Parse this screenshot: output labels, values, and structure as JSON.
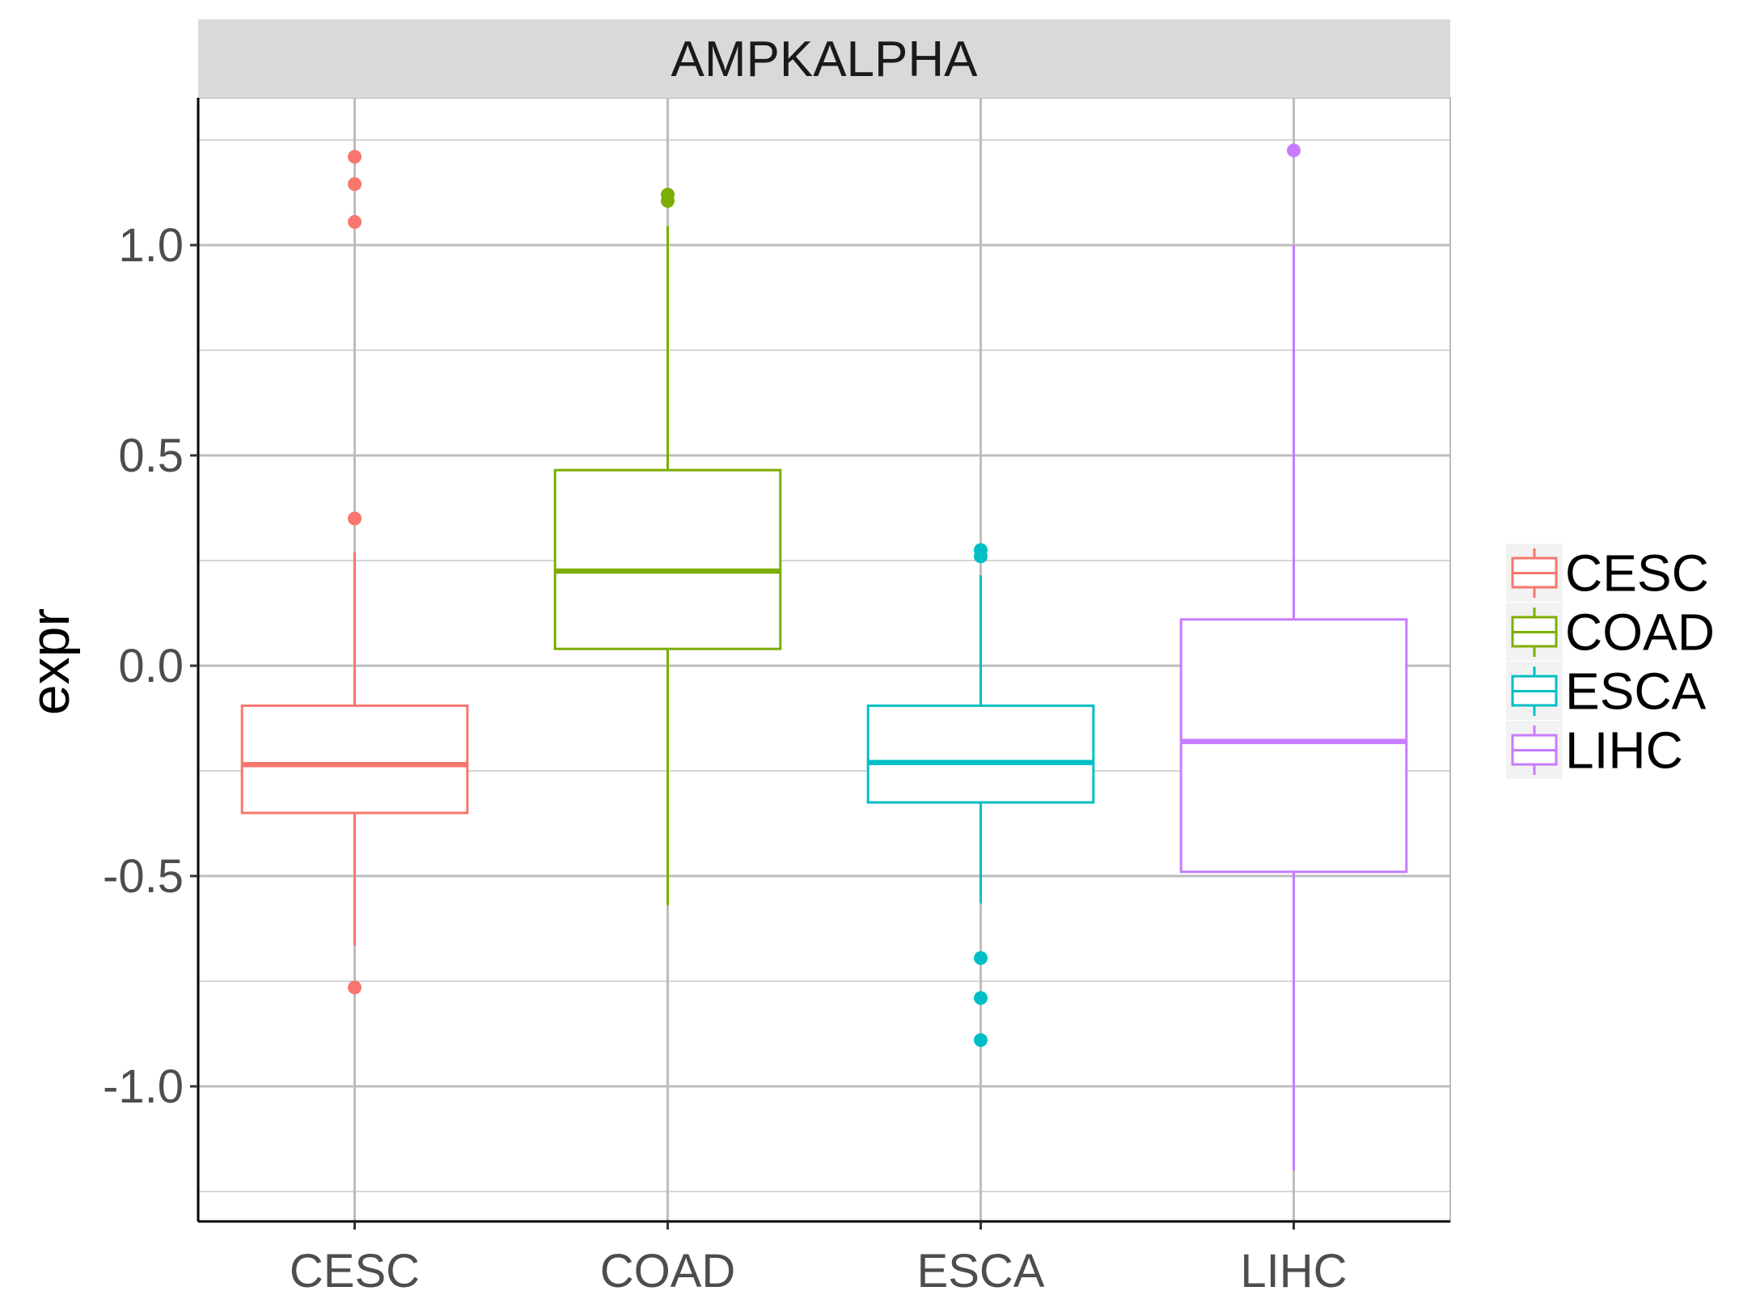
{
  "chart_data": {
    "type": "boxplot",
    "facet_title": "AMPKALPHA",
    "xlabel": "",
    "ylabel": "expr",
    "ylim": [
      -1.32,
      1.35
    ],
    "yticks": [
      1.0,
      0.5,
      0.0,
      -0.5,
      -1.0
    ],
    "ytick_labels": [
      "1.0",
      "0.5",
      "0.0",
      "-0.5",
      "-1.0"
    ],
    "minor_y": [
      1.25,
      0.75,
      0.25,
      -0.25,
      -0.75,
      -1.25
    ],
    "categories": [
      "CESC",
      "COAD",
      "ESCA",
      "LIHC"
    ],
    "series": [
      {
        "name": "CESC",
        "color": "#F8766D",
        "q1": -0.35,
        "median": -0.235,
        "q3": -0.095,
        "whisker_low": -0.665,
        "whisker_high": 0.27,
        "outliers": [
          1.21,
          1.145,
          1.055,
          0.35,
          -0.765
        ]
      },
      {
        "name": "COAD",
        "color": "#7CAE00",
        "q1": 0.04,
        "median": 0.225,
        "q3": 0.465,
        "whisker_low": -0.57,
        "whisker_high": 1.045,
        "outliers": [
          1.12,
          1.105
        ]
      },
      {
        "name": "ESCA",
        "color": "#00BFC4",
        "q1": -0.325,
        "median": -0.23,
        "q3": -0.095,
        "whisker_low": -0.565,
        "whisker_high": 0.215,
        "outliers": [
          0.275,
          0.26,
          -0.695,
          -0.79,
          -0.89
        ]
      },
      {
        "name": "LIHC",
        "color": "#C77CFF",
        "q1": -0.49,
        "median": -0.18,
        "q3": 0.11,
        "whisker_low": -1.2,
        "whisker_high": 1.0,
        "outliers": [
          1.225
        ]
      }
    ],
    "legend": {
      "position": "right",
      "entries": [
        "CESC",
        "COAD",
        "ESCA",
        "LIHC"
      ]
    },
    "grid": true
  }
}
